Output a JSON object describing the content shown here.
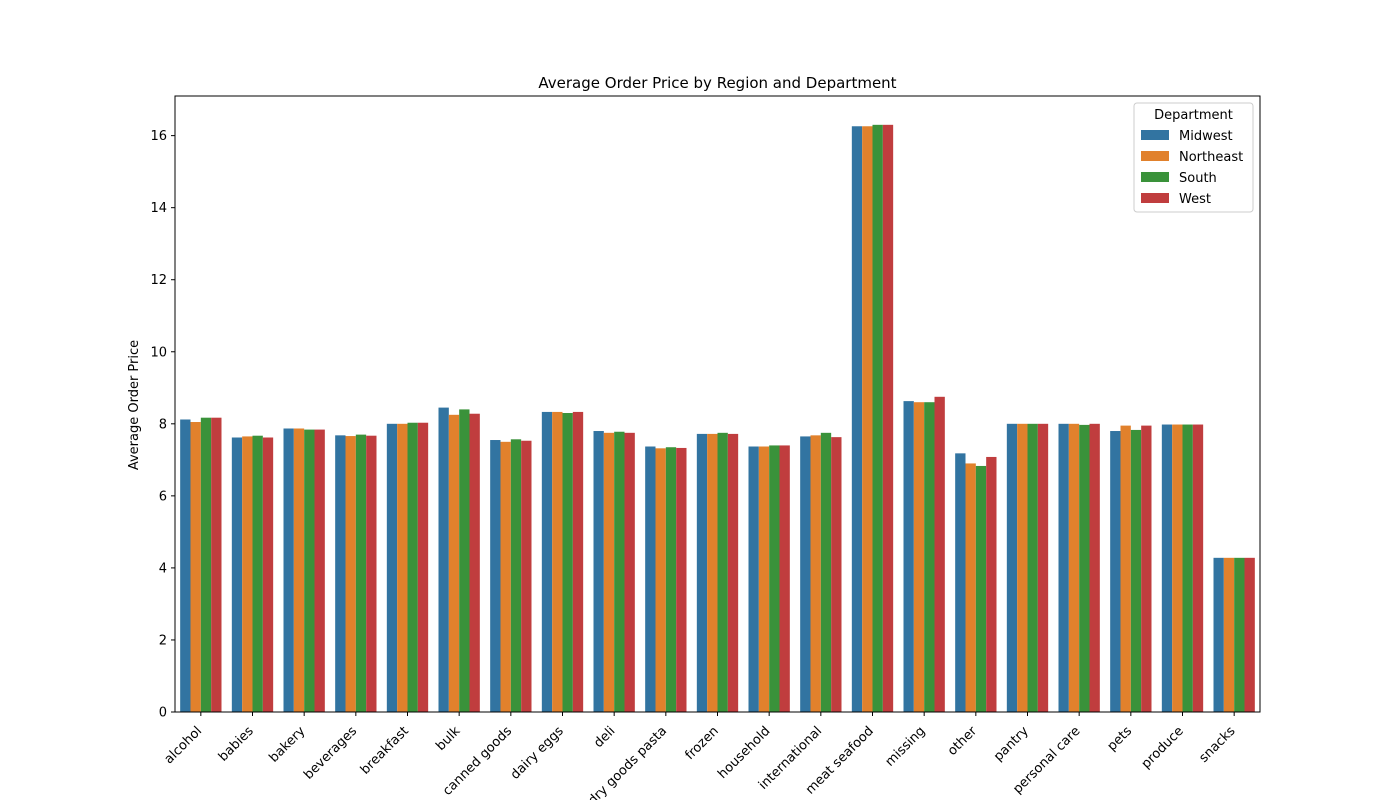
{
  "chart_data": {
    "type": "bar",
    "title": "Average Order Price by Region and Department",
    "xlabel": "",
    "ylabel": "Average Order Price",
    "ylim": [
      0,
      17.1
    ],
    "yticks": [
      0,
      2,
      4,
      6,
      8,
      10,
      12,
      14,
      16
    ],
    "legend_title": "Department",
    "legend_position": "top-right",
    "categories": [
      "alcohol",
      "babies",
      "bakery",
      "beverages",
      "breakfast",
      "bulk",
      "canned goods",
      "dairy eggs",
      "deli",
      "dry goods pasta",
      "frozen",
      "household",
      "international",
      "meat seafood",
      "missing",
      "other",
      "pantry",
      "personal care",
      "pets",
      "produce",
      "snacks"
    ],
    "series": [
      {
        "name": "Midwest",
        "color": "#3274a1",
        "values": [
          8.12,
          7.62,
          7.87,
          7.68,
          8.0,
          8.45,
          7.55,
          8.33,
          7.8,
          7.37,
          7.72,
          7.37,
          7.65,
          16.26,
          8.63,
          7.18,
          8.0,
          8.0,
          7.8,
          7.98,
          4.28
        ]
      },
      {
        "name": "Northeast",
        "color": "#e1812c",
        "values": [
          8.05,
          7.65,
          7.87,
          7.66,
          8.0,
          8.25,
          7.5,
          8.33,
          7.75,
          7.32,
          7.72,
          7.37,
          7.68,
          16.26,
          8.6,
          6.9,
          8.0,
          8.0,
          7.95,
          7.98,
          4.28
        ]
      },
      {
        "name": "South",
        "color": "#3a923a",
        "values": [
          8.17,
          7.67,
          7.84,
          7.7,
          8.03,
          8.4,
          7.57,
          8.3,
          7.78,
          7.35,
          7.75,
          7.4,
          7.75,
          16.3,
          8.6,
          6.83,
          8.0,
          7.97,
          7.83,
          7.98,
          4.28
        ]
      },
      {
        "name": "West",
        "color": "#c03d3e",
        "values": [
          8.17,
          7.62,
          7.84,
          7.67,
          8.03,
          8.28,
          7.53,
          8.33,
          7.75,
          7.33,
          7.72,
          7.4,
          7.63,
          16.3,
          8.75,
          7.08,
          8.0,
          8.0,
          7.95,
          7.98,
          4.28
        ]
      }
    ]
  }
}
